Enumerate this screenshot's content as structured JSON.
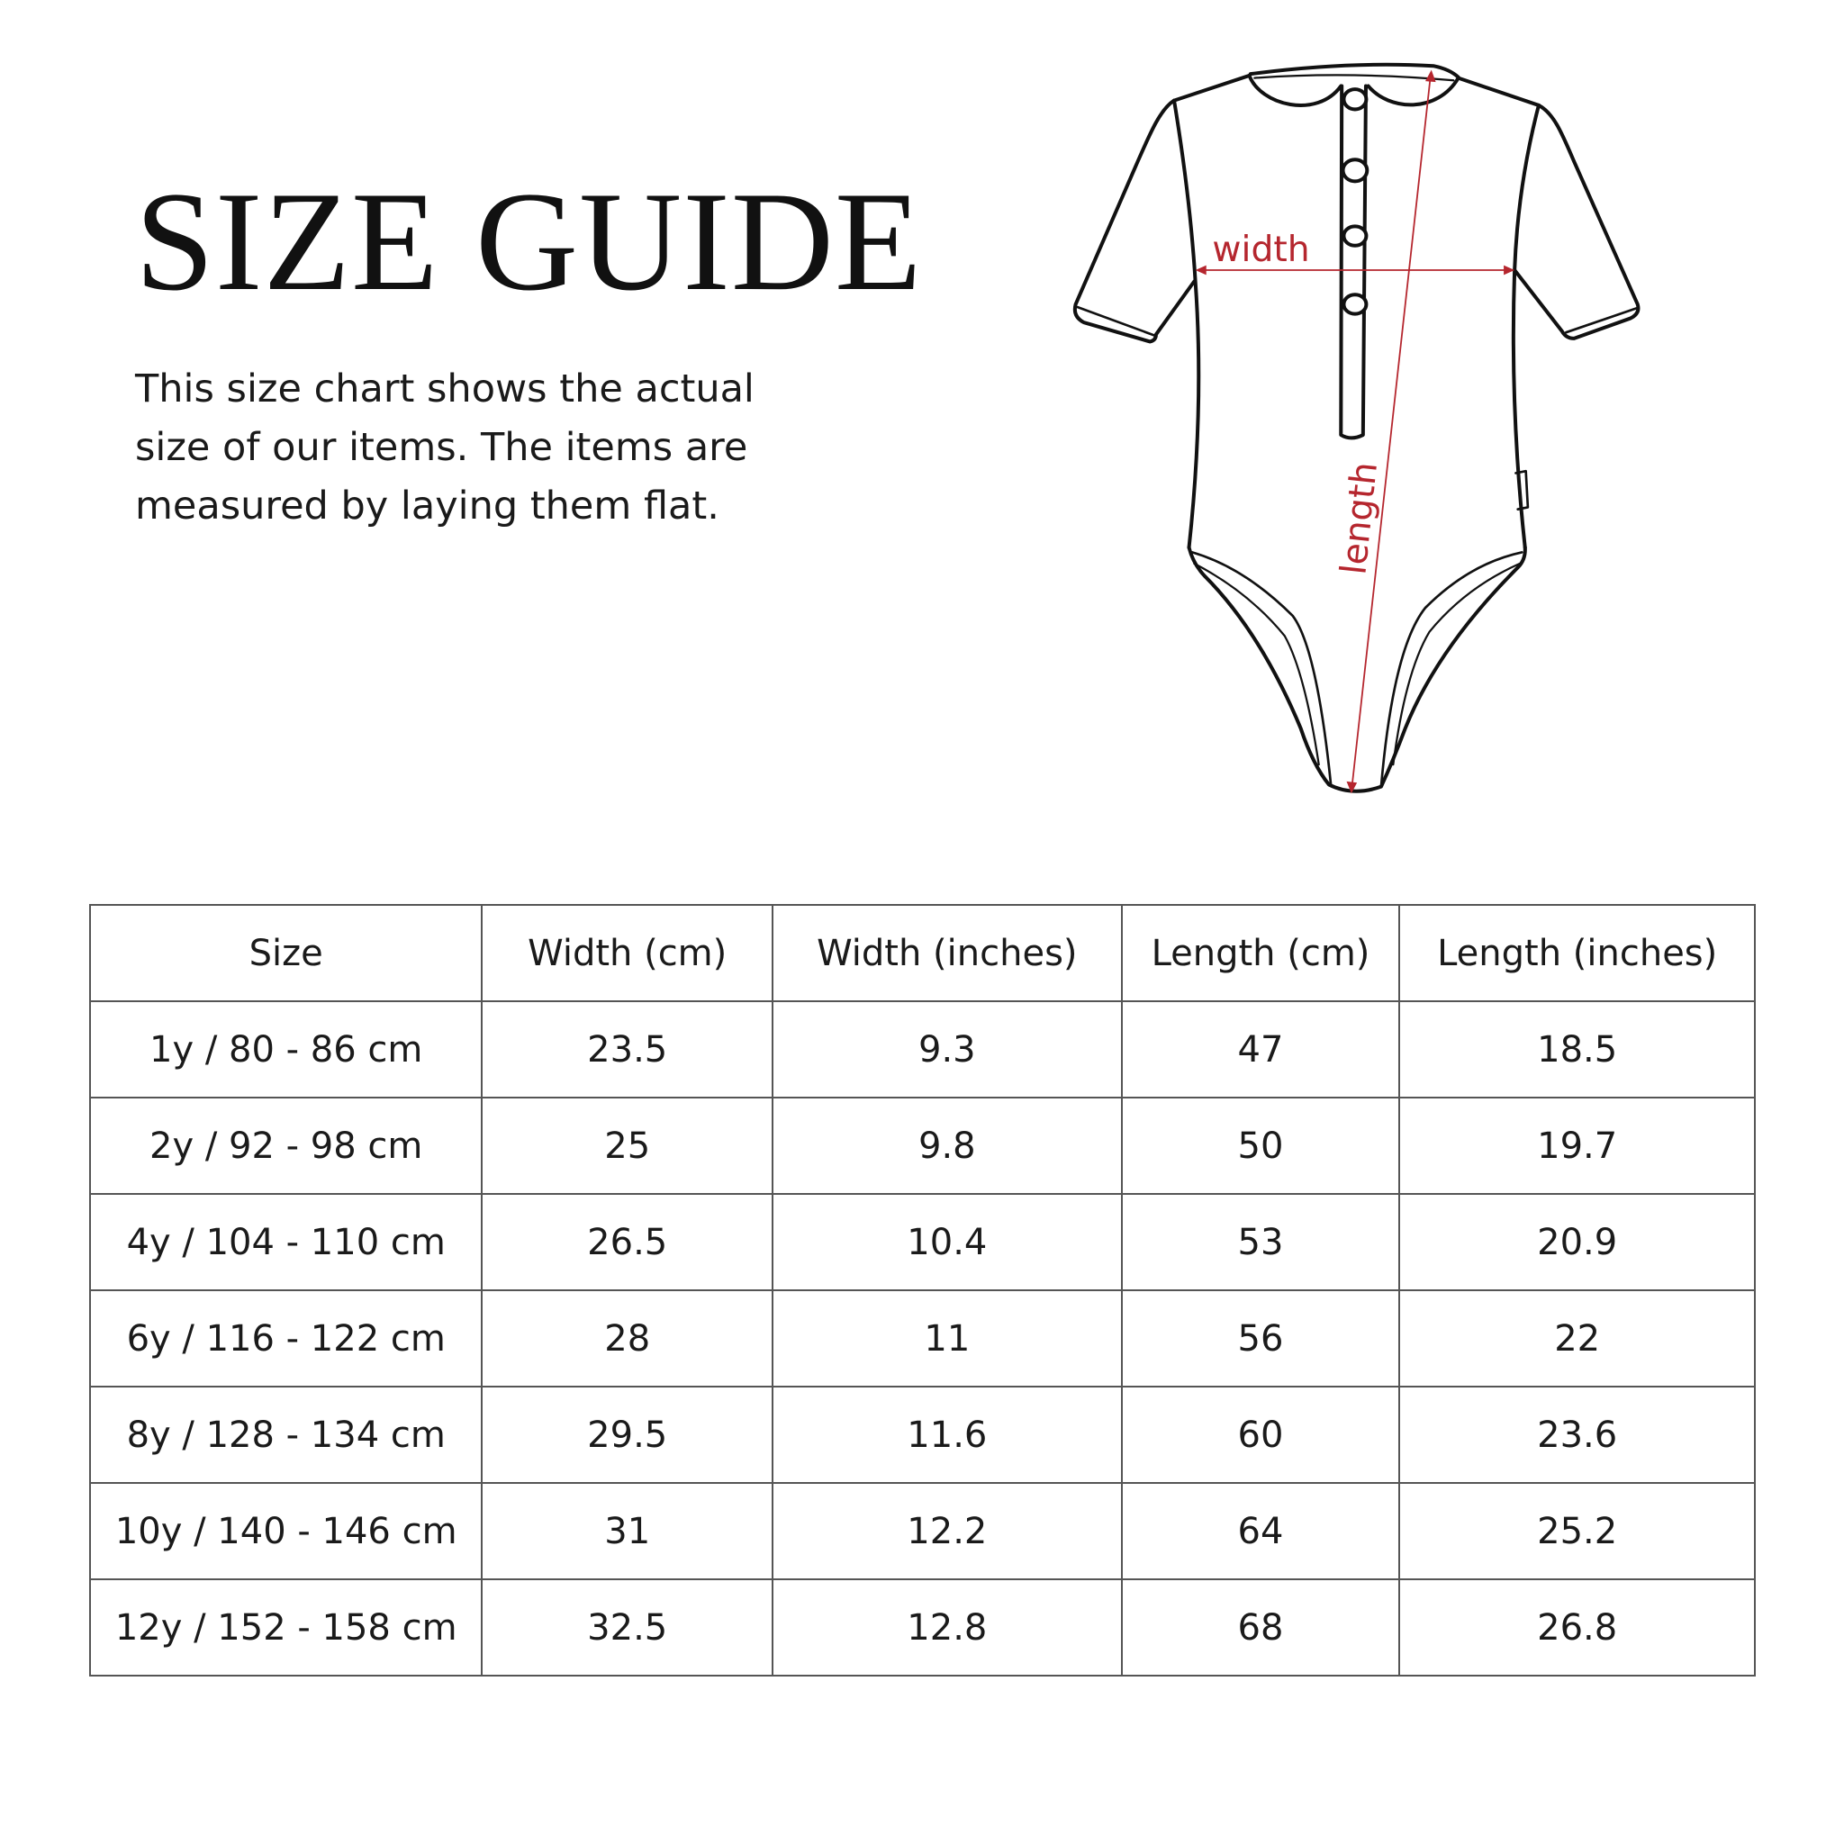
{
  "title": "SIZE GUIDE",
  "description": "This size chart shows the actual size of our items. The items are measured by laying them flat.",
  "diagram": {
    "width_label": "width",
    "length_label": "length",
    "accent_color": "#b5262e"
  },
  "table": {
    "headers": [
      "Size",
      "Width (cm)",
      "Width (inches)",
      "Length (cm)",
      "Length (inches)"
    ],
    "rows": [
      [
        "1y / 80 - 86 cm",
        "23.5",
        "9.3",
        "47",
        "18.5"
      ],
      [
        "2y / 92 - 98 cm",
        "25",
        "9.8",
        "50",
        "19.7"
      ],
      [
        "4y / 104 - 110 cm",
        "26.5",
        "10.4",
        "53",
        "20.9"
      ],
      [
        "6y / 116 - 122 cm",
        "28",
        "11",
        "56",
        "22"
      ],
      [
        "8y / 128 - 134 cm",
        "29.5",
        "11.6",
        "60",
        "23.6"
      ],
      [
        "10y / 140 - 146 cm",
        "31",
        "12.2",
        "64",
        "25.2"
      ],
      [
        "12y / 152 - 158 cm",
        "32.5",
        "12.8",
        "68",
        "26.8"
      ]
    ]
  }
}
